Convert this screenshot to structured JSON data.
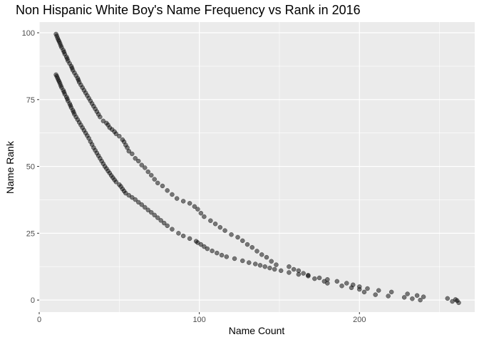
{
  "chart_data": {
    "type": "scatter",
    "title": "Non Hispanic White Boy's Name Frequency vs Rank in 2016",
    "xlabel": "Name Count",
    "ylabel": "Name Rank",
    "xlim": [
      0,
      272
    ],
    "ylim": [
      -4.5,
      104
    ],
    "x_ticks": [
      0,
      100,
      200
    ],
    "x_tick_labels": [
      "0",
      "100",
      "200"
    ],
    "x_minor_ticks": [
      50,
      150,
      250
    ],
    "y_ticks": [
      0,
      25,
      50,
      75,
      100
    ],
    "y_tick_labels": [
      "0",
      "25",
      "50",
      "75",
      "100"
    ],
    "y_minor_ticks": [
      12.5,
      37.5,
      62.5,
      87.5
    ],
    "grid": true,
    "point_color": "#000000",
    "point_opacity": 0.5,
    "background_color": "#ebebeb",
    "grid_color": "#ffffff",
    "series": [
      {
        "x": [
          10.5,
          11,
          11.5,
          12,
          12.5,
          13,
          13.5,
          14,
          15,
          15.5,
          16,
          17,
          17.5,
          18,
          19,
          20,
          20.5,
          21,
          22,
          23,
          24,
          24.5,
          25,
          26,
          27,
          28,
          29,
          30,
          31,
          32,
          33,
          34,
          35,
          36,
          37,
          38,
          40,
          42,
          43,
          44,
          45.5,
          47,
          48,
          50,
          52,
          53,
          54,
          55,
          56,
          58,
          60,
          62,
          64,
          66,
          68,
          70,
          72,
          74,
          77,
          80,
          83,
          86,
          90,
          94,
          97,
          99,
          101,
          103,
          107,
          110,
          113,
          116,
          120,
          124,
          127,
          130,
          133,
          136,
          139,
          142,
          145,
          148,
          156,
          159,
          162,
          165,
          168,
          172,
          178,
          180,
          189,
          195,
          200,
          203,
          210,
          218,
          228,
          233,
          238,
          258,
          262
        ],
        "y": [
          99.5,
          98.8,
          98,
          97.3,
          96.7,
          96,
          95.2,
          94.5,
          93.5,
          92.8,
          92,
          91,
          90.3,
          89.5,
          88.5,
          87.5,
          86.8,
          86,
          85,
          84,
          83,
          82.3,
          81.5,
          80.5,
          79.5,
          78.5,
          77.5,
          76.5,
          75.5,
          74.5,
          73.5,
          72.5,
          71.5,
          70.5,
          69.5,
          68.5,
          67,
          66.2,
          65.5,
          64.5,
          63.8,
          63,
          62.2,
          61.3,
          60,
          59.2,
          58,
          57,
          55.7,
          54.7,
          53,
          52,
          50.5,
          49.5,
          48,
          46.7,
          45.2,
          43.8,
          42.7,
          41,
          39.5,
          38,
          37,
          36.2,
          35,
          34,
          32.5,
          31.2,
          29.7,
          28.5,
          27.2,
          26,
          24.5,
          23.5,
          22.2,
          20.8,
          19.7,
          18.3,
          17,
          16,
          14.5,
          13.2,
          12.5,
          11.5,
          11,
          10,
          9.3,
          8,
          7,
          6.3,
          5.3,
          4.6,
          4,
          3,
          2,
          1.5,
          1,
          0.5,
          0,
          -0.5,
          -1
        ]
      },
      {
        "x": [
          10.5,
          11,
          11.5,
          12,
          12.5,
          13,
          13.5,
          14,
          15,
          15.5,
          16,
          17,
          17.5,
          18,
          19,
          19.5,
          20,
          21,
          21.5,
          22,
          23,
          24,
          25,
          26,
          27,
          28,
          29,
          30,
          31,
          32,
          33,
          34,
          35,
          36,
          37,
          38,
          39,
          40,
          41,
          42,
          43,
          44,
          45,
          46,
          47,
          48,
          50,
          51,
          52,
          53,
          54,
          56,
          58,
          60,
          62,
          64,
          66,
          68,
          70,
          72,
          74,
          76,
          78,
          80,
          83,
          87,
          90,
          94,
          98,
          99,
          101,
          103,
          105,
          108,
          111,
          114,
          117,
          122,
          127,
          131,
          135,
          138,
          141,
          144,
          147,
          151,
          156,
          162,
          168,
          175,
          180,
          186,
          192,
          196,
          200,
          205,
          212,
          220,
          230,
          236,
          240,
          255,
          260,
          261
        ],
        "y": [
          84.3,
          83.7,
          83,
          82.3,
          81.7,
          81,
          80.2,
          79.5,
          78.5,
          77.8,
          77,
          76,
          75.3,
          74.5,
          73.5,
          72.8,
          72,
          71,
          70.3,
          69.5,
          68.5,
          67.5,
          66.5,
          65.5,
          64.5,
          63.5,
          62.5,
          61.5,
          60.5,
          59.3,
          58.2,
          57,
          56,
          55,
          54,
          53,
          52,
          51,
          50,
          49.2,
          48.3,
          47.5,
          46.6,
          45.8,
          45,
          44.2,
          43.2,
          42.5,
          41.6,
          40.8,
          40,
          39.2,
          38.4,
          37.6,
          36.6,
          35.7,
          34.7,
          33.7,
          32.8,
          31.8,
          30.8,
          29.8,
          28.8,
          27.8,
          26.5,
          25,
          24,
          23,
          22,
          21.5,
          20.8,
          20,
          19.2,
          18.4,
          17.6,
          16.8,
          16.2,
          15.5,
          14.7,
          14,
          13.5,
          13,
          12.5,
          12,
          11.5,
          11,
          10.3,
          9.6,
          9,
          8.3,
          7.7,
          7,
          6.3,
          5.7,
          5,
          4.3,
          3.6,
          3,
          2.3,
          1.7,
          1.2,
          0.6,
          0.2,
          -0.2
        ]
      }
    ]
  }
}
